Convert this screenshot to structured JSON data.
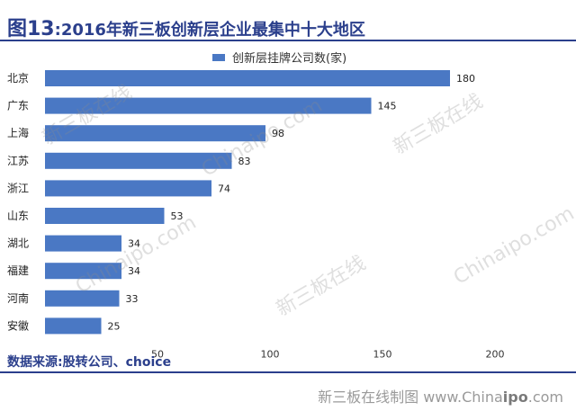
{
  "header": {
    "fig_label": "图13",
    "title_text": ":2016年新三板创新层企业最集中十大地区"
  },
  "source": "数据来源:股转公司、choice",
  "footer": {
    "brand_prefix": "新三板在线制图 www.China",
    "brand_bold": "ipo",
    "brand_suffix": ".com"
  },
  "watermark": {
    "text_a": "新三板在线",
    "text_b": "Chinaipo.com"
  },
  "colors": {
    "bar": "#4a78c4",
    "accent": "#2b3f8c"
  },
  "chart_data": {
    "type": "bar",
    "orientation": "horizontal",
    "categories": [
      "北京",
      "广东",
      "上海",
      "江苏",
      "浙江",
      "山东",
      "湖北",
      "福建",
      "河南",
      "安徽"
    ],
    "series": [
      {
        "name": "创新层挂牌公司数(家)",
        "values": [
          180,
          145,
          98,
          83,
          74,
          53,
          34,
          34,
          33,
          25
        ]
      }
    ],
    "xlim": [
      0,
      200
    ],
    "xticks": [
      0,
      50,
      100,
      150,
      200
    ],
    "xticks_visible": [
      "50",
      "100",
      "150",
      "200"
    ],
    "legend_position": "top",
    "grid": false
  }
}
